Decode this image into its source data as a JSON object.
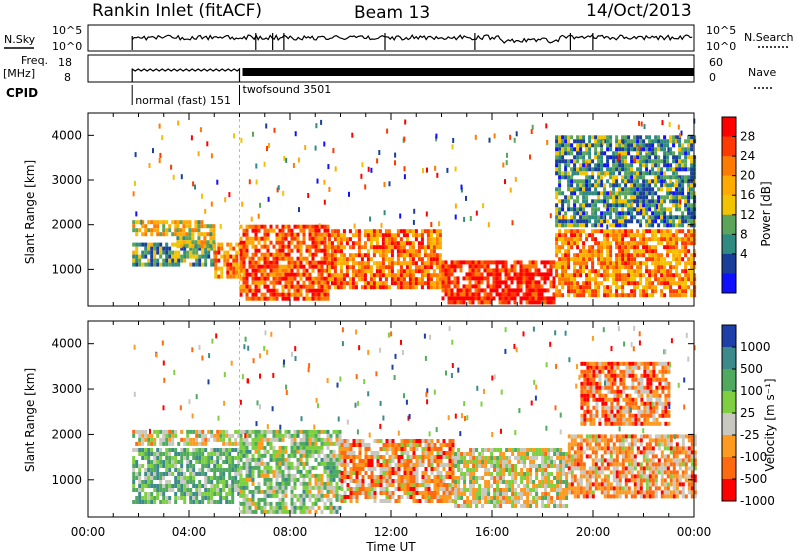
{
  "header": {
    "title": "Rankin Inlet (fitACF)",
    "beam": "Beam 13",
    "date": "14/Oct/2013"
  },
  "top_panels": {
    "nsky_label": "N.Sky",
    "nsky_ticks": [
      "10^5",
      "10^0"
    ],
    "nsearch_label": "N.Search",
    "nsearch_ticks": [
      "10^5",
      "10^0"
    ],
    "freq_label": "Freq.",
    "freq_unit": "[MHz]",
    "freq_ticks": [
      "18",
      "8"
    ],
    "nave_label": "Nave",
    "nave_ticks": [
      "60",
      "0"
    ],
    "cpid_label": "CPID",
    "cpid_segments": [
      {
        "label": "normal (fast) 151",
        "start_hour": 1.75,
        "end_hour": 6.0
      },
      {
        "label": "twofsound 3501",
        "start_hour": 6.0,
        "end_hour": 24.0
      }
    ]
  },
  "x_axis": {
    "label": "Time UT",
    "ticks": [
      "00:00",
      "04:00",
      "08:00",
      "12:00",
      "16:00",
      "20:00",
      "00:00"
    ],
    "tick_hours": [
      0,
      4,
      8,
      12,
      16,
      20,
      24
    ]
  },
  "y_axis": {
    "label": "Slant Range [km]",
    "ticks": [
      "1000",
      "2000",
      "3000",
      "4000"
    ],
    "tick_values": [
      1000,
      2000,
      3000,
      4000
    ]
  },
  "power_scale": {
    "label": "Power [dB]",
    "ticks": [
      "28",
      "24",
      "20",
      "16",
      "12",
      "8",
      "4"
    ],
    "colors": [
      "#ff0000",
      "#ff3a00",
      "#ff7a00",
      "#ffaa00",
      "#f2c300",
      "#5aa55a",
      "#2f8a80",
      "#1a3f9a",
      "#1010ff"
    ]
  },
  "velocity_scale": {
    "label": "Velocity [m s⁻¹]",
    "ticks": [
      "1000",
      "500",
      "100",
      "25",
      "-25",
      "-100",
      "-500",
      "-1000"
    ],
    "colors": [
      "#1f3fa8",
      "#3d8a8a",
      "#4faa5f",
      "#7ed040",
      "#c8c8c0",
      "#ff9a20",
      "#ff6a10",
      "#ff0000"
    ]
  },
  "chart_data": [
    {
      "type": "heatmap",
      "panel": "power",
      "x_range_hours": [
        0,
        24
      ],
      "y_range_km": [
        180,
        4500
      ],
      "ylabel": "Slant Range [km]",
      "xlabel": "Time UT",
      "colorbar_label": "Power [dB]",
      "colorbar_ticks": [
        28,
        24,
        20,
        16,
        12,
        8,
        4
      ],
      "regions": [
        {
          "t0": 1.75,
          "t1": 5.0,
          "r0": 1100,
          "r1": 1600,
          "level": 0.35
        },
        {
          "t0": 1.75,
          "t1": 3.5,
          "r0": 1800,
          "r1": 2100,
          "level": 0.55
        },
        {
          "t0": 3.5,
          "t1": 5.0,
          "r0": 1500,
          "r1": 2100,
          "level": 0.5
        },
        {
          "t0": 5.0,
          "t1": 6.2,
          "r0": 800,
          "r1": 1600,
          "level": 0.7
        },
        {
          "t0": 6.0,
          "t1": 9.5,
          "r0": 300,
          "r1": 2000,
          "level": 0.8
        },
        {
          "t0": 9.5,
          "t1": 14.0,
          "r0": 600,
          "r1": 1900,
          "level": 0.75
        },
        {
          "t0": 14.0,
          "t1": 18.5,
          "r0": 300,
          "r1": 1200,
          "level": 0.9
        },
        {
          "t0": 18.5,
          "t1": 24.0,
          "r0": 400,
          "r1": 1900,
          "level": 0.7
        },
        {
          "t0": 18.5,
          "t1": 24.0,
          "r0": 2000,
          "r1": 4000,
          "level": 0.3
        }
      ]
    },
    {
      "type": "heatmap",
      "panel": "velocity",
      "x_range_hours": [
        0,
        24
      ],
      "y_range_km": [
        180,
        4500
      ],
      "ylabel": "Slant Range [km]",
      "xlabel": "Time UT",
      "colorbar_label": "Velocity [m s⁻¹]",
      "colorbar_ticks": [
        1000,
        500,
        100,
        25,
        -25,
        -100,
        -500,
        -1000
      ],
      "regions": [
        {
          "t0": 1.75,
          "t1": 6.0,
          "r0": 500,
          "r1": 1700,
          "level": 0.65
        },
        {
          "t0": 1.75,
          "t1": 6.0,
          "r0": 1800,
          "r1": 2100,
          "level": 0.45
        },
        {
          "t0": 6.0,
          "t1": 10.0,
          "r0": 300,
          "r1": 2100,
          "level": 0.55
        },
        {
          "t0": 10.0,
          "t1": 14.5,
          "r0": 500,
          "r1": 1900,
          "level": 0.3
        },
        {
          "t0": 14.5,
          "t1": 19.0,
          "r0": 400,
          "r1": 1700,
          "level": 0.45
        },
        {
          "t0": 19.0,
          "t1": 24.0,
          "r0": 600,
          "r1": 2000,
          "level": 0.3
        },
        {
          "t0": 19.5,
          "t1": 23.0,
          "r0": 2200,
          "r1": 3600,
          "level": 0.25
        }
      ]
    }
  ]
}
